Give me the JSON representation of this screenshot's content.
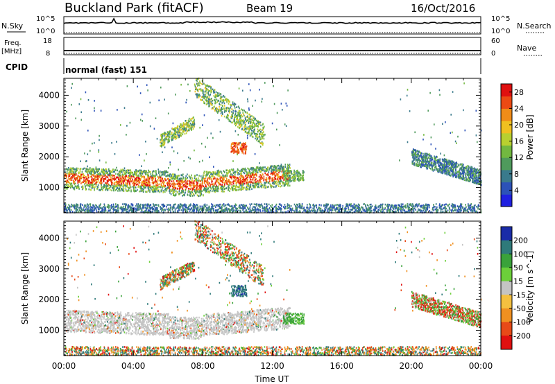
{
  "header": {
    "station": "Buckland Park (fitACF)",
    "beam": "Beam 19",
    "date": "16/Oct/2016"
  },
  "summary_panels": {
    "nsky_label": "N.Sky",
    "nsky_ticks": [
      "10^5",
      "10^0"
    ],
    "nsearch_label": "N.Search",
    "nsearch_ticks": [
      "10^5",
      "10^0"
    ],
    "freq_label": "Freq.",
    "freq_unit": "[MHz]",
    "freq_ticks": [
      "18",
      "8"
    ],
    "nave_label": "Nave",
    "nave_ticks": [
      "60",
      "0"
    ],
    "cpid_label": "CPID",
    "cpid_text": "normal (fast) 151"
  },
  "colors": {
    "power": [
      "#2020e0",
      "#2c52b8",
      "#3a7a8c",
      "#4f9a5c",
      "#72b840",
      "#b8d030",
      "#f0c020",
      "#f08c18",
      "#ec4a14",
      "#e01010"
    ],
    "velocity_positive": [
      "#1a2ca8",
      "#2f7a7a",
      "#3aa23a",
      "#6ccf3a"
    ],
    "velocity_ground": "#c4c4c4",
    "velocity_negative": [
      "#f4c040",
      "#f09020",
      "#e84a18",
      "#e01010"
    ]
  },
  "chart_data": [
    {
      "type": "heatmap",
      "title": "",
      "xlabel": "",
      "ylabel": "Slant Range [km]",
      "x_tick_labels": [
        "00:00",
        "04:00",
        "08:00",
        "12:00",
        "16:00",
        "20:00",
        "00:00"
      ],
      "x_range_hours": [
        0,
        24
      ],
      "y_ticks": [
        1000,
        2000,
        3000,
        4000
      ],
      "ylim": [
        180,
        4550
      ],
      "colorbar": {
        "label": "Power [dB]",
        "ticks": [
          "4",
          "8",
          "12",
          "16",
          "20",
          "24",
          "28"
        ],
        "range": [
          0,
          30
        ]
      },
      "echo_regions": [
        {
          "name": "main_band",
          "hours": [
            0,
            13
          ],
          "range_km": [
            1000,
            1800
          ],
          "power_db": [
            10,
            30
          ]
        },
        {
          "name": "upper_arc",
          "hours": [
            5.5,
            11.5
          ],
          "range_km": [
            2500,
            4400
          ],
          "power_db": [
            6,
            18
          ]
        },
        {
          "name": "evening_band",
          "hours": [
            20,
            24
          ],
          "range_km": [
            1300,
            2100
          ],
          "power_db": [
            4,
            12
          ]
        },
        {
          "name": "near_range",
          "hours": [
            0,
            24
          ],
          "range_km": [
            180,
            400
          ],
          "power_db": [
            4,
            10
          ]
        }
      ]
    },
    {
      "type": "heatmap",
      "title": "",
      "xlabel": "Time UT",
      "ylabel": "Slant Range [km]",
      "x_tick_labels": [
        "00:00",
        "04:00",
        "08:00",
        "12:00",
        "16:00",
        "20:00",
        "00:00"
      ],
      "x_range_hours": [
        0,
        24
      ],
      "y_ticks": [
        1000,
        2000,
        3000,
        4000
      ],
      "ylim": [
        180,
        4550
      ],
      "colorbar": {
        "label": "Velocity [m s^-1]",
        "ticks": [
          "200",
          "100",
          "50",
          "15",
          "-15",
          "-50",
          "-100",
          "-200"
        ],
        "range": [
          -250,
          250
        ]
      },
      "echo_regions": [
        {
          "name": "ground_scatter_band",
          "hours": [
            0,
            13
          ],
          "range_km": [
            1000,
            1800
          ],
          "velocity": [
            -15,
            15
          ]
        },
        {
          "name": "upper_arc",
          "hours": [
            5.5,
            11.5
          ],
          "range_km": [
            2500,
            4400
          ],
          "velocity": [
            -150,
            150
          ]
        },
        {
          "name": "evening_band",
          "hours": [
            20,
            24
          ],
          "range_km": [
            1300,
            2100
          ],
          "velocity": [
            -100,
            100
          ]
        },
        {
          "name": "near_range",
          "hours": [
            0,
            24
          ],
          "range_km": [
            180,
            400
          ],
          "velocity": [
            -250,
            250
          ]
        }
      ]
    }
  ]
}
